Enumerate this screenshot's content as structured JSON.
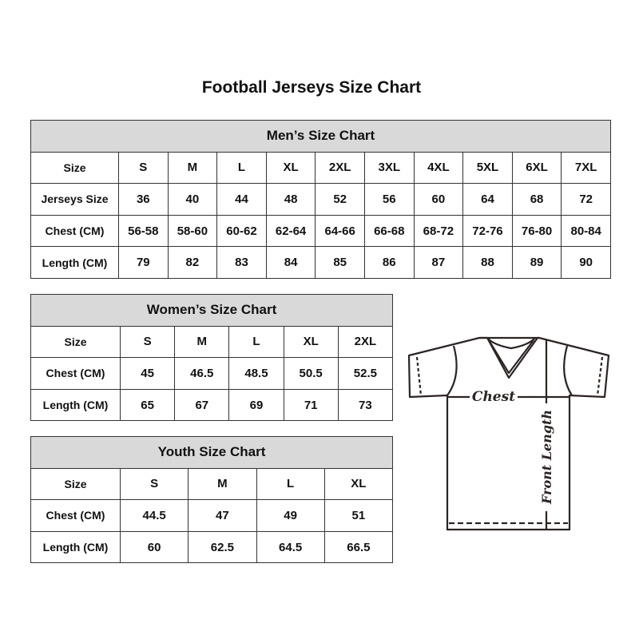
{
  "title": "Football Jerseys Size Chart",
  "men": {
    "caption": "Men’s Size Chart",
    "rows": [
      {
        "label": "Size",
        "values": [
          "S",
          "M",
          "L",
          "XL",
          "2XL",
          "3XL",
          "4XL",
          "5XL",
          "6XL",
          "7XL"
        ]
      },
      {
        "label": "Jerseys Size",
        "values": [
          "36",
          "40",
          "44",
          "48",
          "52",
          "56",
          "60",
          "64",
          "68",
          "72"
        ]
      },
      {
        "label": "Chest (CM)",
        "values": [
          "56-58",
          "58-60",
          "60-62",
          "62-64",
          "64-66",
          "66-68",
          "68-72",
          "72-76",
          "76-80",
          "80-84"
        ]
      },
      {
        "label": "Length (CM)",
        "values": [
          "79",
          "82",
          "83",
          "84",
          "85",
          "86",
          "87",
          "88",
          "89",
          "90"
        ]
      }
    ]
  },
  "women": {
    "caption": "Women’s Size Chart",
    "rows": [
      {
        "label": "Size",
        "values": [
          "S",
          "M",
          "L",
          "XL",
          "2XL"
        ]
      },
      {
        "label": "Chest (CM)",
        "values": [
          "45",
          "46.5",
          "48.5",
          "50.5",
          "52.5"
        ]
      },
      {
        "label": "Length (CM)",
        "values": [
          "65",
          "67",
          "69",
          "71",
          "73"
        ]
      }
    ]
  },
  "youth": {
    "caption": "Youth Size Chart",
    "rows": [
      {
        "label": "Size",
        "values": [
          "S",
          "M",
          "L",
          "XL"
        ]
      },
      {
        "label": "Chest (CM)",
        "values": [
          "44.5",
          "47",
          "49",
          "51"
        ]
      },
      {
        "label": "Length (CM)",
        "values": [
          "60",
          "62.5",
          "64.5",
          "66.5"
        ]
      }
    ]
  },
  "diagram": {
    "chest_label": "Chest",
    "length_label": "Front Length"
  },
  "colors": {
    "header_bg": "#d9d9d9",
    "line": "#2b2422"
  }
}
